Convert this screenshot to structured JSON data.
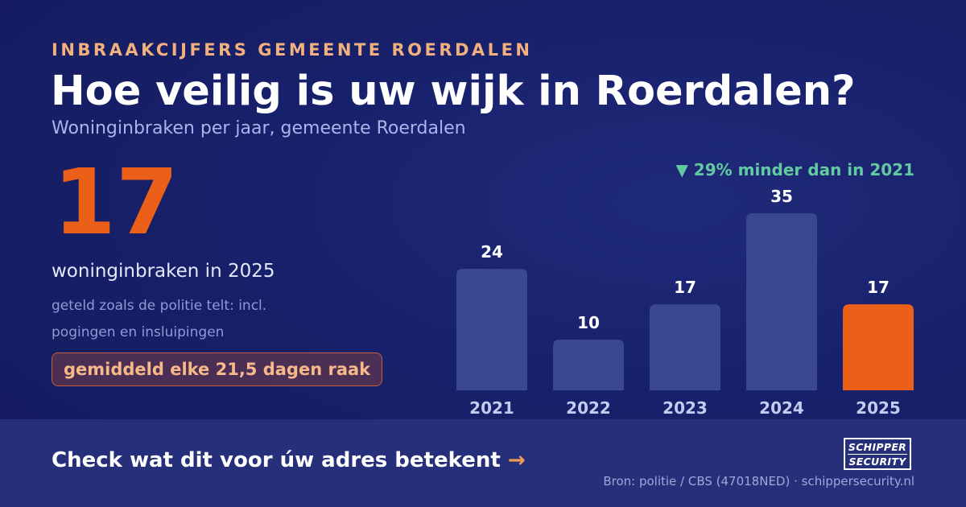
{
  "header": {
    "eyebrow": "INBRAAKCIJFERS GEMEENTE ROERDALEN",
    "title": "Hoe veilig is uw wijk in Roerdalen?",
    "subtitle": "Woninginbraken per jaar, gemeente Roerdalen"
  },
  "kpi": {
    "value": "17",
    "label": "woninginbraken in 2025",
    "note": "geteld zoals de politie telt: incl. pogingen en insluipingen",
    "badge": "gemiddeld elke 21,5 dagen raak"
  },
  "delta": "▼ 29% minder dan in 2021",
  "chart_data": {
    "type": "bar",
    "categories": [
      "2021",
      "2022",
      "2023",
      "2024",
      "2025"
    ],
    "values": [
      24,
      10,
      17,
      35,
      17
    ],
    "ylim": [
      0,
      35
    ],
    "highlight_index": 4,
    "colors": {
      "default": "#3a4891",
      "highlight": "#ec5f18",
      "label": "#ffffff",
      "tick": "#c2cbf0"
    }
  },
  "footer": {
    "cta": "Check wat dit voor úw adres betekent",
    "cta_arrow": "→",
    "source": "Bron: politie / CBS (47018NED) · schippersecurity.nl",
    "logo_top": "SCHIPPER",
    "logo_bottom": "SECURITY"
  }
}
